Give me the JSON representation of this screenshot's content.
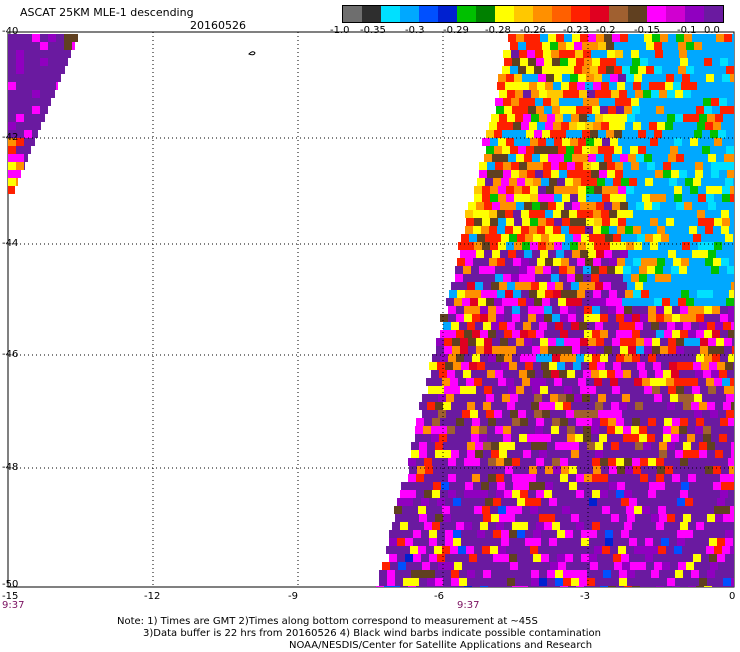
{
  "header": {
    "title": "ASCAT 25KM MLE-1 descending",
    "date": "20160526"
  },
  "colorbar": {
    "colors": [
      "#6e6e6e",
      "#2e2e2e",
      "#00e0ff",
      "#00a8ff",
      "#0050ff",
      "#0020d0",
      "#00c000",
      "#008000",
      "#ffff00",
      "#ffc800",
      "#ff9000",
      "#ff6000",
      "#ff2000",
      "#e00020",
      "#a06030",
      "#604020",
      "#ff00ff",
      "#d000d0",
      "#9000c0",
      "#6a1aa0"
    ],
    "labels": [
      "-1.0",
      "-0.35",
      "-0.3",
      "-0.29",
      "-0.28",
      "-0.26",
      "-0.23",
      "-0.2",
      "-0.15",
      "-0.1",
      "0.0"
    ]
  },
  "axes": {
    "lat_labels": [
      "-40",
      "-42",
      "-44",
      "-46",
      "-48",
      "-50"
    ],
    "lon_labels": [
      "-15",
      "-12",
      "-9",
      "-6",
      "-3",
      "0"
    ],
    "time_left": "9:37",
    "time_mid": "9:37"
  },
  "notes": {
    "line1": "Note: 1) Times are GMT 2)Times along bottom correspond to measurement at ~45S",
    "line2": "3)Data buffer is 22 hrs from 20160526 4) Black wind barbs indicate possible contamination",
    "line3": "NOAA/NESDIS/Center for Satellite Applications and Research"
  }
}
